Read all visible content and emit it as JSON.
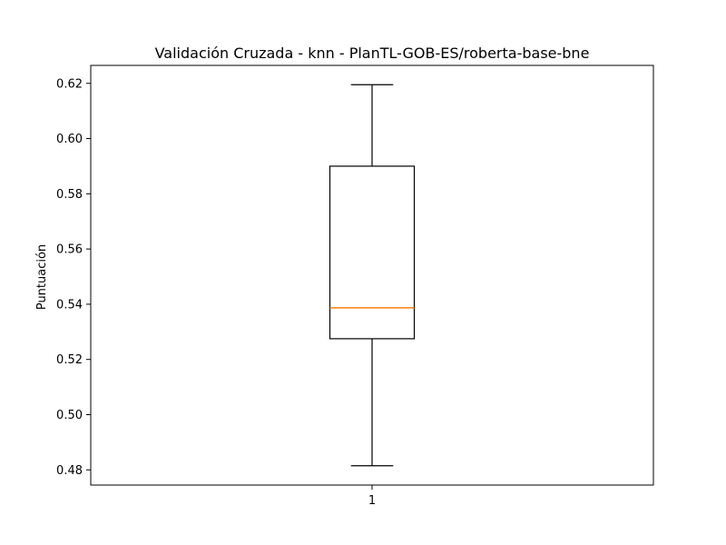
{
  "chart_data": {
    "type": "boxplot",
    "title": "Validación Cruzada - knn - PlanTL-GOB-ES/roberta-base-bne",
    "xlabel": "",
    "ylabel": "Puntuación",
    "categories": [
      "1"
    ],
    "boxes": [
      {
        "category": "1",
        "whisker_low": 0.4815,
        "q1": 0.5275,
        "median": 0.5387,
        "q3": 0.59,
        "whisker_high": 0.6195
      }
    ],
    "ylim": [
      0.4745,
      0.6265
    ],
    "yticks": [
      0.48,
      0.5,
      0.52,
      0.54,
      0.56,
      0.58,
      0.6,
      0.62
    ],
    "ytick_labels": [
      "0.48",
      "0.50",
      "0.52",
      "0.54",
      "0.56",
      "0.58",
      "0.60",
      "0.62"
    ],
    "grid": false,
    "colors": {
      "box": "#000000",
      "median": "#ff7f0e",
      "whisker": "#000000"
    }
  }
}
